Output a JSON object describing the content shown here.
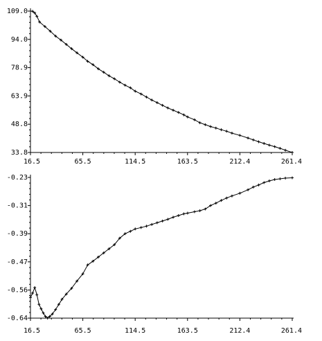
{
  "chart_data": [
    {
      "type": "line",
      "title": "",
      "xlabel": "",
      "ylabel": "",
      "xlim": [
        16.5,
        261.4
      ],
      "ylim": [
        33.8,
        109.0
      ],
      "x_ticks": [
        "16.5",
        "65.5",
        "114.5",
        "163.5",
        "212.4",
        "261.4"
      ],
      "y_ticks": [
        "109.0",
        "94.0",
        "78.9",
        "63.9",
        "48.8",
        "33.8"
      ],
      "grid": false,
      "marker": "plus",
      "series": [
        {
          "x": [
            16.5,
            18.5,
            20.5,
            22.5,
            25,
            30,
            35,
            40,
            45,
            50,
            55,
            60,
            65.5,
            70,
            75,
            80,
            85,
            90,
            95,
            100,
            105,
            110,
            114.5,
            120,
            125,
            130,
            135,
            140,
            145,
            150,
            155,
            160,
            163.5,
            170,
            175,
            180,
            185,
            190,
            195,
            200,
            205,
            212.4,
            220,
            225,
            230,
            235,
            240,
            245,
            250,
            255,
            261.4
          ],
          "y": [
            109.0,
            108.9,
            108.0,
            106.2,
            103.2,
            100.8,
            98.3,
            95.7,
            93.6,
            91.3,
            89.0,
            86.8,
            84.5,
            82.3,
            80.5,
            78.3,
            76.5,
            74.6,
            73.0,
            71.2,
            69.6,
            68.2,
            66.4,
            64.9,
            63.3,
            61.7,
            60.3,
            58.9,
            57.5,
            56.3,
            55.1,
            53.8,
            52.7,
            51.2,
            49.6,
            48.6,
            47.6,
            46.8,
            45.9,
            45.1,
            44.1,
            42.9,
            41.5,
            40.5,
            39.5,
            38.6,
            37.7,
            36.9,
            36.0,
            35.0,
            33.8
          ]
        }
      ]
    },
    {
      "type": "line",
      "title": "",
      "xlabel": "",
      "ylabel": "",
      "xlim": [
        16.5,
        261.4
      ],
      "ylim": [
        -0.64,
        -0.23
      ],
      "x_ticks": [
        "16.5",
        "65.5",
        "114.5",
        "163.5",
        "212.4",
        "261.4"
      ],
      "y_ticks": [
        "-0.23",
        "-0.31",
        "-0.39",
        "-0.47",
        "-0.56",
        "-0.64"
      ],
      "grid": false,
      "marker": "plus",
      "series": [
        {
          "x": [
            16.5,
            18.5,
            20.5,
            22.5,
            24.5,
            26.5,
            28.5,
            30.5,
            32.5,
            34.5,
            37,
            40,
            43,
            46,
            50,
            55,
            60,
            65.5,
            70,
            75,
            80,
            85,
            90,
            95,
            100,
            105,
            110,
            114.5,
            120,
            125,
            130,
            135,
            140,
            145,
            150,
            155,
            160,
            163.5,
            170,
            175,
            180,
            185,
            190,
            195,
            200,
            205,
            212.4,
            220,
            225,
            230,
            235,
            240,
            245,
            250,
            255,
            261.4
          ],
          "y": [
            -0.58,
            -0.567,
            -0.551,
            -0.572,
            -0.6,
            -0.613,
            -0.625,
            -0.635,
            -0.64,
            -0.635,
            -0.628,
            -0.615,
            -0.6,
            -0.585,
            -0.57,
            -0.553,
            -0.532,
            -0.511,
            -0.485,
            -0.474,
            -0.462,
            -0.45,
            -0.438,
            -0.426,
            -0.407,
            -0.394,
            -0.387,
            -0.38,
            -0.376,
            -0.372,
            -0.367,
            -0.362,
            -0.357,
            -0.352,
            -0.346,
            -0.341,
            -0.336,
            -0.334,
            -0.33,
            -0.327,
            -0.322,
            -0.312,
            -0.305,
            -0.297,
            -0.29,
            -0.284,
            -0.276,
            -0.266,
            -0.258,
            -0.252,
            -0.245,
            -0.24,
            -0.236,
            -0.234,
            -0.232,
            -0.231
          ]
        }
      ]
    }
  ]
}
